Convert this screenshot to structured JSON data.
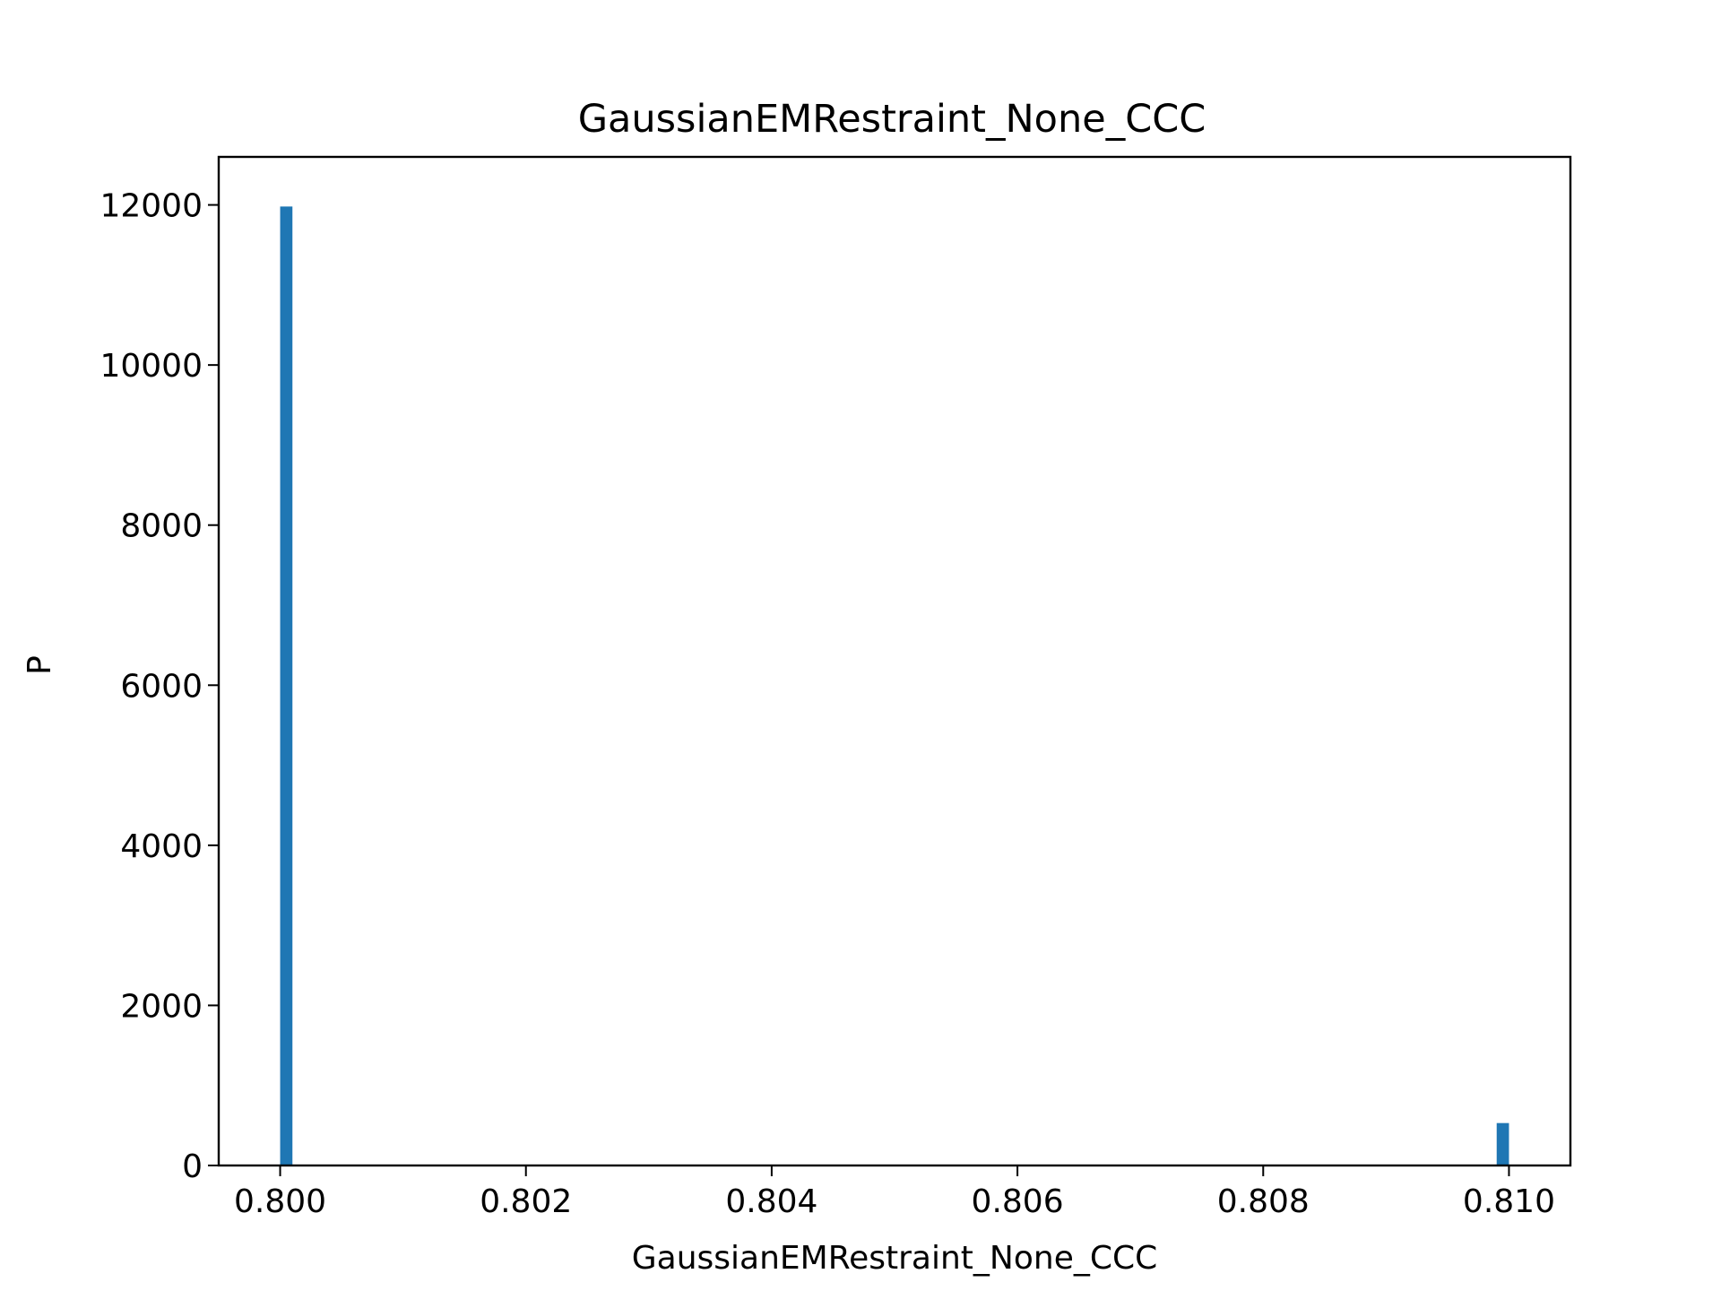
{
  "chart_data": {
    "type": "bar",
    "title": "GaussianEMRestraint_None_CCC",
    "xlabel": "GaussianEMRestraint_None_CCC",
    "ylabel": "P",
    "xlim": [
      0.7995,
      0.8105
    ],
    "ylim": [
      0,
      12600
    ],
    "x_ticks": [
      {
        "value": 0.8,
        "label": "0.800"
      },
      {
        "value": 0.802,
        "label": "0.802"
      },
      {
        "value": 0.804,
        "label": "0.804"
      },
      {
        "value": 0.806,
        "label": "0.806"
      },
      {
        "value": 0.808,
        "label": "0.808"
      },
      {
        "value": 0.81,
        "label": "0.810"
      }
    ],
    "y_ticks": [
      {
        "value": 0,
        "label": "0"
      },
      {
        "value": 2000,
        "label": "2000"
      },
      {
        "value": 4000,
        "label": "4000"
      },
      {
        "value": 6000,
        "label": "6000"
      },
      {
        "value": 8000,
        "label": "8000"
      },
      {
        "value": 10000,
        "label": "10000"
      },
      {
        "value": 12000,
        "label": "12000"
      }
    ],
    "bins": [
      {
        "x_start": 0.8,
        "x_end": 0.8001,
        "count": 11980
      },
      {
        "x_start": 0.8099,
        "x_end": 0.81,
        "count": 530
      }
    ],
    "grid": false,
    "legend": "none",
    "bar_color": "#1f77b4"
  }
}
